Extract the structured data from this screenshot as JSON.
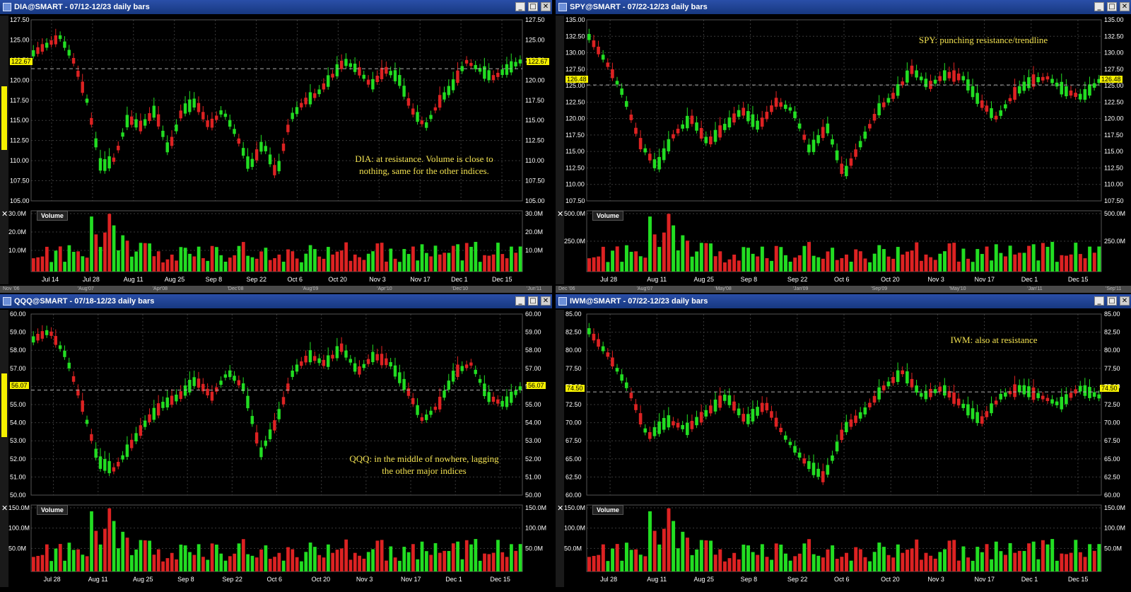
{
  "panes": {
    "dia": {
      "title": "DIA@SMART - 07/12-12/23  daily bars",
      "price_tag": "122.67",
      "volume_label": "Volume",
      "annotation": [
        "DIA: at resistance. Volume is close to",
        "nothing, same for the other indices."
      ],
      "y_ticks": [
        "127.50",
        "125.00",
        "122.50",
        "120.00",
        "117.50",
        "115.00",
        "112.50",
        "110.00",
        "107.50",
        "105.00"
      ],
      "vol_ticks": [
        "30.0M",
        "20.0M",
        "10.0M"
      ],
      "x_labels": [
        "Jul 14",
        "Jul 28",
        "Aug 11",
        "Aug 25",
        "Sep 8",
        "Sep 22",
        "Oct 6",
        "Oct 20",
        "Nov 3",
        "Nov 17",
        "Dec 1",
        "Dec 15"
      ],
      "scroll_labels": [
        "Nov '06",
        "'Aug'07",
        "'Apr'08",
        "'Dec'08",
        "'Aug'09",
        "'Apr'10",
        "'Dec'10",
        "'Jun'11"
      ]
    },
    "spy": {
      "title": "SPY@SMART - 07/22-12/23  daily bars",
      "price_tag": "126.48",
      "volume_label": "Volume",
      "annotation": [
        "SPY: punching resistance/trendline"
      ],
      "y_ticks": [
        "135.00",
        "132.50",
        "130.00",
        "127.50",
        "125.00",
        "122.50",
        "120.00",
        "117.50",
        "115.00",
        "112.50",
        "110.00",
        "107.50"
      ],
      "vol_ticks": [
        "500.0M",
        "250.0M"
      ],
      "x_labels": [
        "Jul 28",
        "Aug 11",
        "Aug 25",
        "Sep 8",
        "Sep 22",
        "Oct 6",
        "Oct 20",
        "Nov 3",
        "Nov 17",
        "Dec 1",
        "Dec 15"
      ],
      "scroll_labels": [
        "Dec '06",
        "'Aug'07",
        "'May'08",
        "'Jan'09",
        "'Sep'09",
        "'May'10",
        "'Jan'11",
        "'Sep'11"
      ]
    },
    "qqq": {
      "title": "QQQ@SMART - 07/18-12/23  daily bars",
      "price_tag": "56.07",
      "volume_label": "Volume",
      "annotation": [
        "QQQ: in the middle of nowhere, lagging",
        "the other major indices"
      ],
      "y_ticks": [
        "60.00",
        "59.00",
        "58.00",
        "57.00",
        "56.00",
        "55.00",
        "54.00",
        "53.00",
        "52.00",
        "51.00",
        "50.00"
      ],
      "vol_ticks": [
        "150.0M",
        "100.0M",
        "50.0M"
      ],
      "x_labels": [
        "Jul 28",
        "Aug 11",
        "Aug 25",
        "Sep 8",
        "Sep 22",
        "Oct 6",
        "Oct 20",
        "Nov 3",
        "Nov 17",
        "Dec 1",
        "Dec 15"
      ]
    },
    "iwm": {
      "title": "IWM@SMART - 07/22-12/23  daily bars",
      "price_tag": "74.50",
      "volume_label": "Volume",
      "annotation": [
        "IWM: also at resistance"
      ],
      "y_ticks": [
        "85.00",
        "82.50",
        "80.00",
        "77.50",
        "75.00",
        "72.50",
        "70.00",
        "67.50",
        "65.00",
        "62.50",
        "60.00"
      ],
      "vol_ticks": [
        "150.0M",
        "100.0M",
        "50.0M"
      ],
      "x_labels": [
        "Jul 28",
        "Aug 11",
        "Aug 25",
        "Sep 8",
        "Sep 22",
        "Oct 6",
        "Oct 20",
        "Nov 3",
        "Nov 17",
        "Dec 1",
        "Dec 15"
      ]
    }
  },
  "window_buttons": {
    "minimize": "_",
    "maximize": "□",
    "close": "✕"
  },
  "colors": {
    "up": "#22dd22",
    "down": "#dd2222",
    "grid": "#3a3a3a",
    "text": "#ffffff",
    "annotation": "#f0e050",
    "price_tag": "#f5f000"
  },
  "icons": [
    "window-icon",
    "minimize-icon",
    "maximize-icon",
    "close-icon",
    "lock-icon",
    "collapse-x-icon"
  ]
}
